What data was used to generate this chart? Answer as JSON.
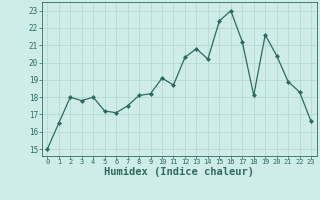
{
  "x": [
    0,
    1,
    2,
    3,
    4,
    5,
    6,
    7,
    8,
    9,
    10,
    11,
    12,
    13,
    14,
    15,
    16,
    17,
    18,
    19,
    20,
    21,
    22,
    23
  ],
  "y": [
    15.0,
    16.5,
    18.0,
    17.8,
    18.0,
    17.2,
    17.1,
    17.5,
    18.1,
    18.2,
    19.1,
    18.7,
    20.3,
    20.8,
    20.2,
    22.4,
    23.0,
    21.2,
    18.1,
    21.6,
    20.4,
    18.9,
    18.3,
    16.6
  ],
  "line_color": "#2e6b5e",
  "marker": "D",
  "marker_size": 2.0,
  "bg_color": "#ceecea",
  "grid_color": "#b8d8d5",
  "tick_color": "#2e6b5e",
  "xlabel": "Humidex (Indice chaleur)",
  "xlabel_fontsize": 7.5,
  "ylabel_ticks": [
    15,
    16,
    17,
    18,
    19,
    20,
    21,
    22,
    23
  ],
  "xlim": [
    -0.5,
    23.5
  ],
  "ylim": [
    14.6,
    23.5
  ]
}
